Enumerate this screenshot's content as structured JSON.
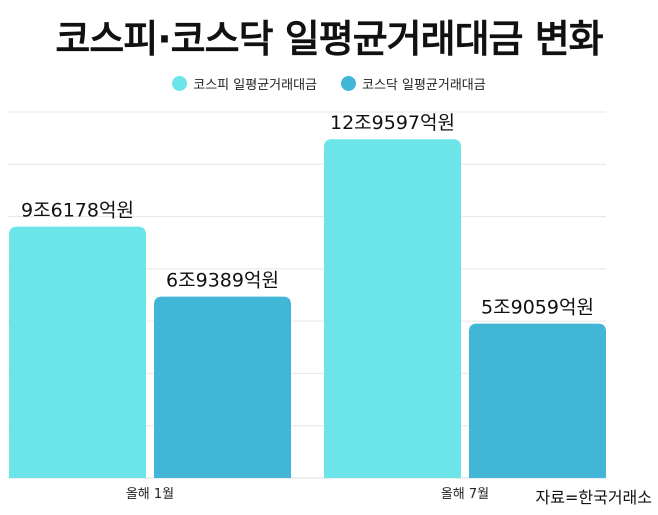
{
  "title": "코스피·코스닥 일평균거래대금 변화",
  "source": "자료=한국거래소",
  "colors": {
    "kospi": "#6ce5e8",
    "kosdaq": "#41b6d6"
  },
  "chart_data": {
    "type": "bar",
    "title": "코스피·코스닥 일평균거래대금 변화",
    "categories": [
      "올해 1월",
      "올해 7월"
    ],
    "series": [
      {
        "name": "코스피 일평균거래대금",
        "values": [
          9.6178,
          12.9597
        ],
        "labels": [
          "9조6178억원",
          "12조9597억원"
        ],
        "color": "#6ce5e8"
      },
      {
        "name": "코스닥 일평균거래대금",
        "values": [
          6.9389,
          5.9059
        ],
        "labels": [
          "6조9389억원",
          "5조9059억원"
        ],
        "color": "#41b6d6"
      }
    ],
    "ylim": [
      0,
      14
    ],
    "grid": true,
    "legend": "top-center"
  }
}
